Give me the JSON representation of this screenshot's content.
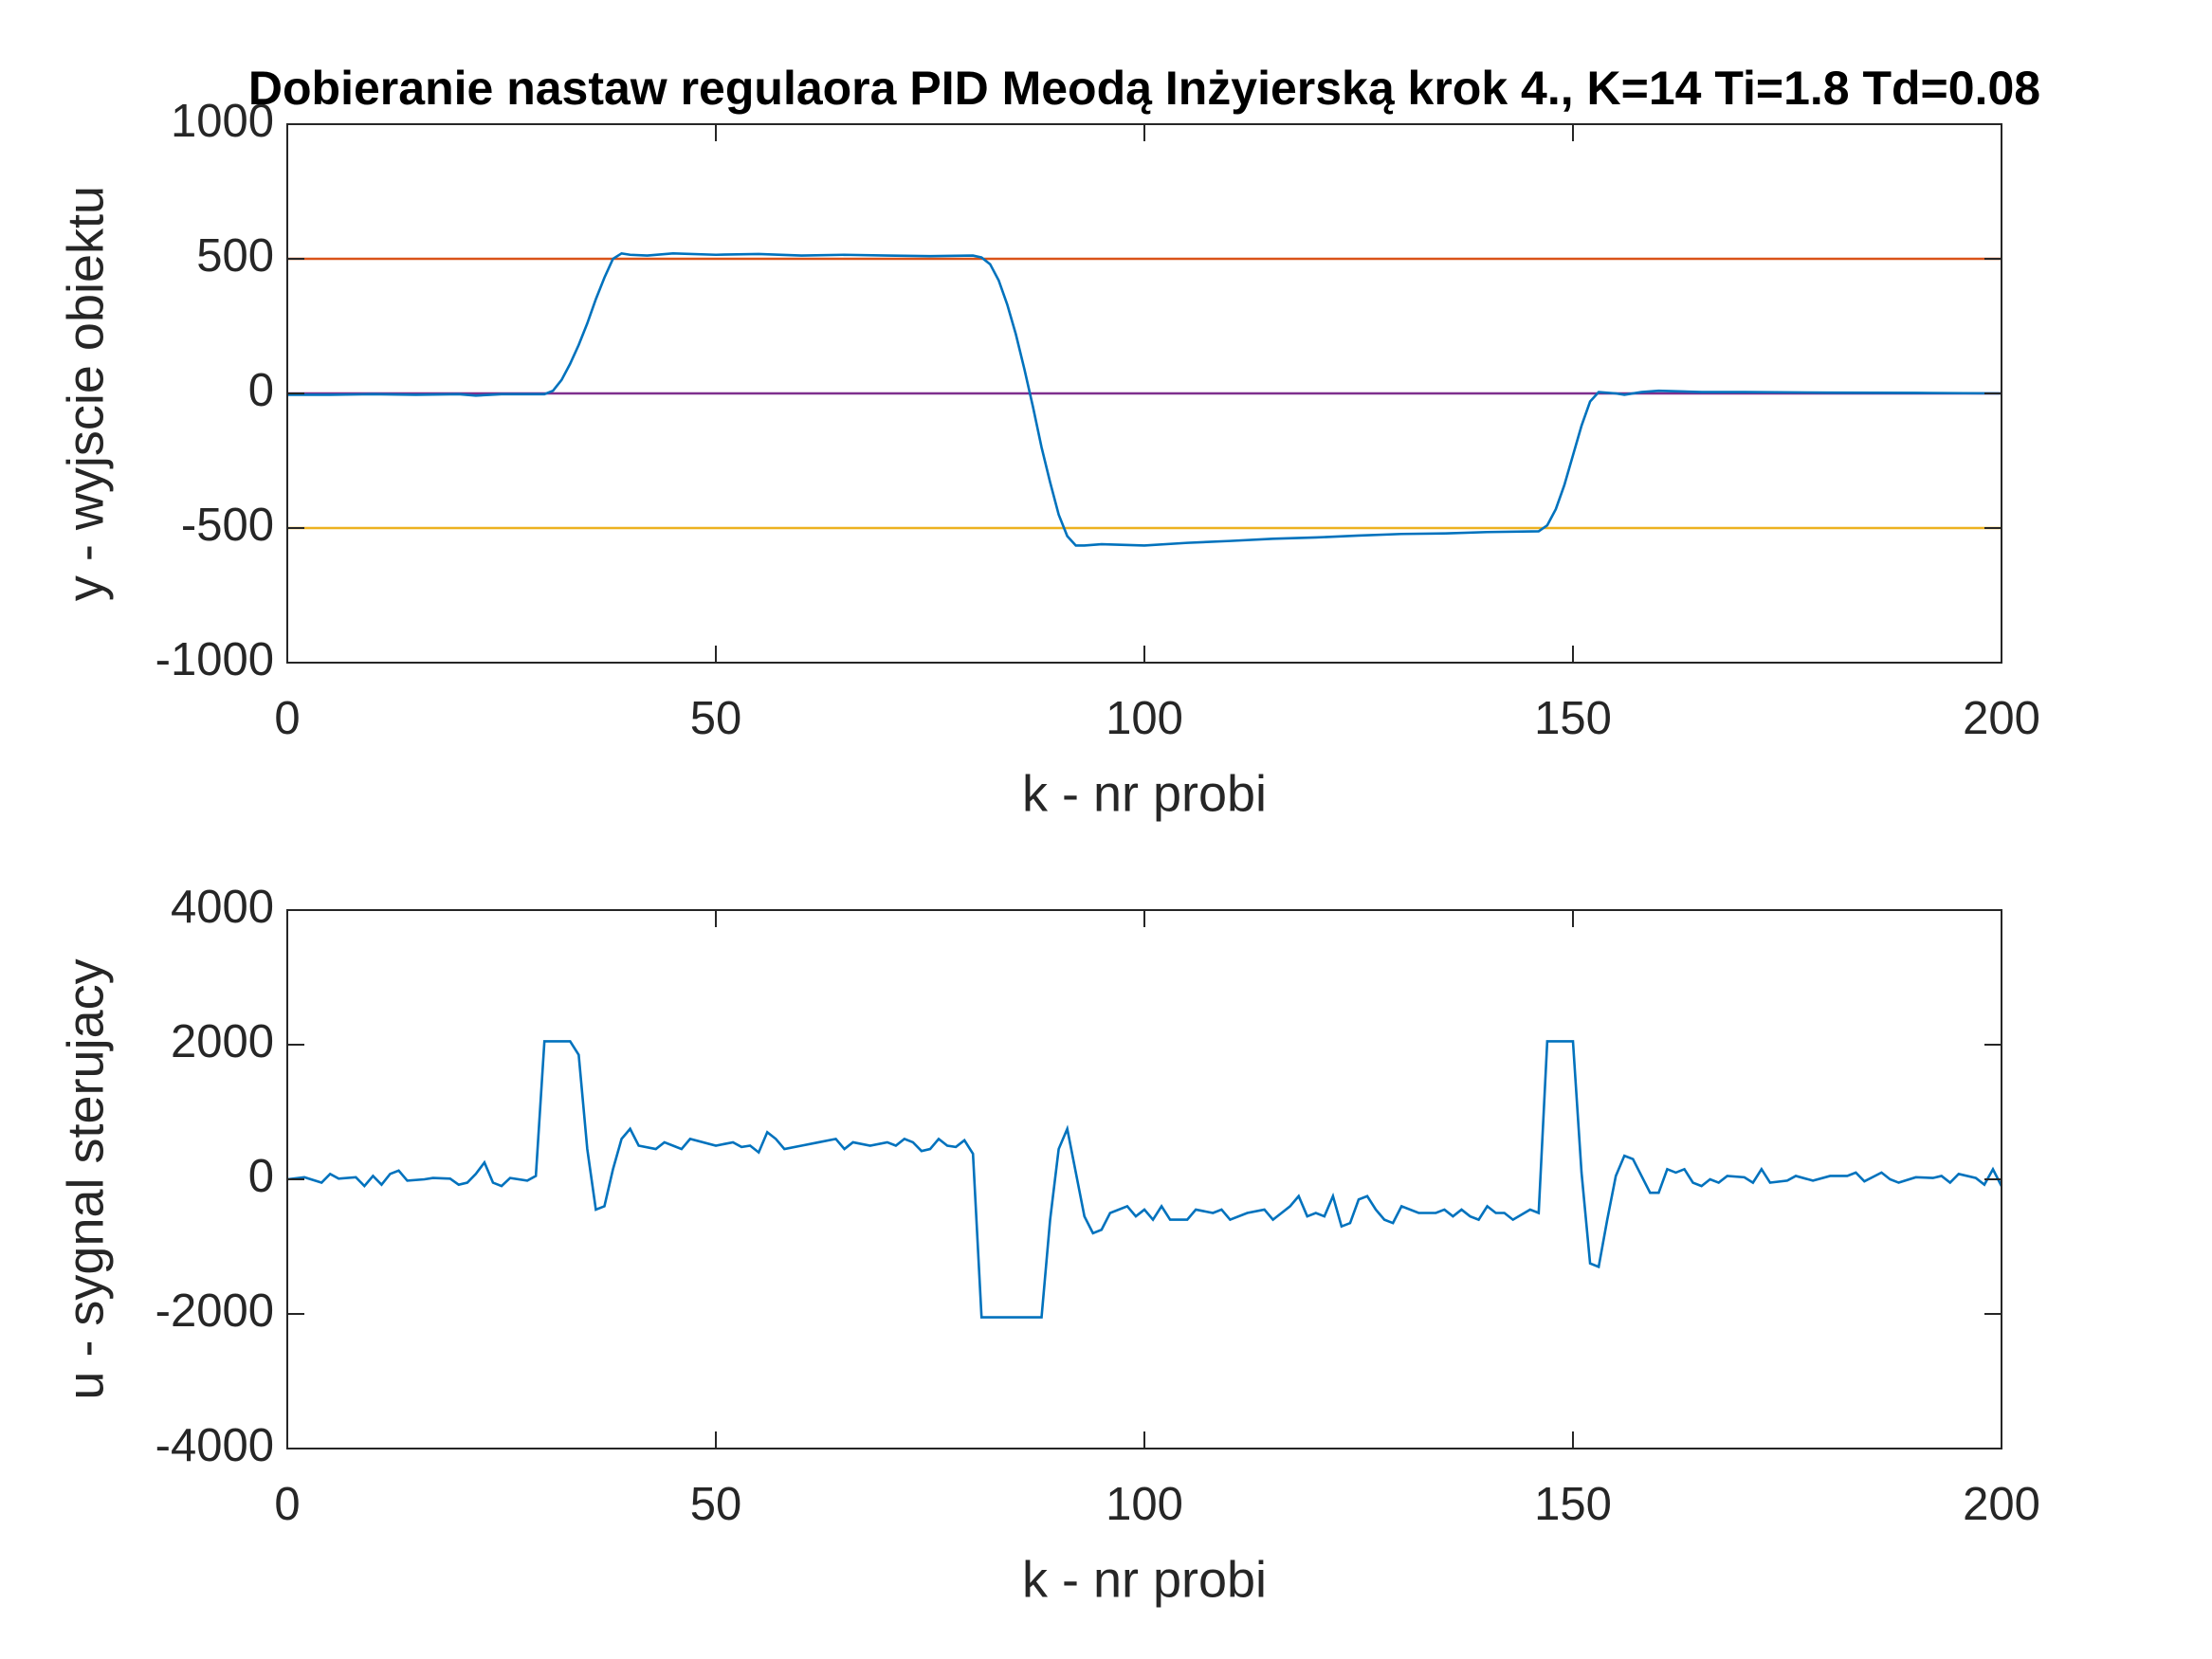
{
  "chart_data": [
    {
      "type": "line",
      "title": "Dobieranie nastaw regulaora PID Meodą Inżyierską krok 4., K=14 Ti=1.8 Td=0.08",
      "xlabel": "k - nr probi",
      "ylabel": "y - wyjscie obiektu",
      "xlim": [
        0,
        200
      ],
      "ylim": [
        -1000,
        1000
      ],
      "xticks": [
        0,
        50,
        100,
        150,
        200
      ],
      "yticks": [
        -1000,
        -500,
        0,
        500,
        1000
      ],
      "series": [
        {
          "color": "#D95319",
          "x": [
            0,
            200
          ],
          "values": [
            500,
            500
          ]
        },
        {
          "color": "#EDB120",
          "x": [
            0,
            200
          ],
          "values": [
            -500,
            -500
          ]
        },
        {
          "color": "#7E2F8E",
          "x": [
            0,
            200
          ],
          "values": [
            0,
            0
          ]
        },
        {
          "color": "#0072BD",
          "x": [
            0,
            5,
            10,
            15,
            20,
            22,
            25,
            30,
            31,
            32,
            33,
            34,
            35,
            36,
            37,
            38,
            39,
            40,
            42,
            45,
            50,
            55,
            60,
            65,
            70,
            75,
            80,
            81,
            82,
            83,
            84,
            85,
            86,
            87,
            88,
            89,
            90,
            91,
            92,
            93,
            95,
            100,
            105,
            110,
            115,
            120,
            125,
            130,
            135,
            140,
            146,
            147,
            148,
            149,
            150,
            151,
            152,
            153,
            155,
            156,
            158,
            160,
            165,
            170,
            180,
            190,
            200
          ],
          "values": [
            -5,
            -5,
            -3,
            -5,
            -3,
            -8,
            -3,
            -3,
            10,
            50,
            110,
            180,
            260,
            350,
            430,
            500,
            520,
            515,
            512,
            520,
            515,
            518,
            512,
            515,
            512,
            510,
            512,
            505,
            480,
            420,
            330,
            220,
            90,
            -50,
            -200,
            -330,
            -450,
            -530,
            -565,
            -565,
            -560,
            -565,
            -555,
            -548,
            -540,
            -535,
            -528,
            -522,
            -520,
            -515,
            -512,
            -490,
            -430,
            -340,
            -230,
            -120,
            -30,
            5,
            0,
            -5,
            5,
            10,
            5,
            5,
            3,
            2,
            0
          ]
        }
      ]
    },
    {
      "type": "line",
      "xlabel": "k - nr probi",
      "ylabel": "u - sygnal sterujacy",
      "xlim": [
        0,
        200
      ],
      "ylim": [
        -4000,
        4000
      ],
      "xticks": [
        0,
        50,
        100,
        150,
        200
      ],
      "yticks": [
        -4000,
        -2000,
        0,
        2000,
        4000
      ],
      "series": [
        {
          "color": "#0072BD",
          "x": [
            0,
            2,
            4,
            5,
            6,
            8,
            9,
            10,
            11,
            12,
            13,
            14,
            16,
            17,
            19,
            20,
            21,
            22,
            23,
            24,
            25,
            26,
            28,
            29,
            30,
            33,
            34,
            35,
            36,
            37,
            38,
            39,
            40,
            41,
            43,
            44,
            45,
            46,
            47,
            50,
            52,
            53,
            54,
            55,
            56,
            57,
            58,
            60,
            62,
            64,
            65,
            66,
            68,
            70,
            71,
            72,
            73,
            74,
            75,
            76,
            77,
            78,
            79,
            80,
            81,
            88,
            89,
            90,
            91,
            92,
            93,
            94,
            95,
            96,
            98,
            99,
            100,
            101,
            102,
            103,
            105,
            106,
            108,
            109,
            110,
            112,
            114,
            115,
            117,
            118,
            119,
            120,
            121,
            122,
            123,
            124,
            125,
            126,
            127,
            128,
            129,
            130,
            132,
            134,
            135,
            136,
            137,
            138,
            139,
            140,
            141,
            142,
            143,
            145,
            146,
            147,
            150,
            151,
            152,
            153,
            154,
            155,
            156,
            157,
            158,
            159,
            160,
            161,
            162,
            163,
            164,
            165,
            166,
            167,
            168,
            170,
            171,
            172,
            173,
            175,
            176,
            178,
            180,
            182,
            183,
            184,
            186,
            187,
            188,
            190,
            192,
            193,
            194,
            195,
            197,
            198,
            199,
            200
          ],
          "values": [
            0,
            30,
            -50,
            80,
            10,
            30,
            -100,
            50,
            -80,
            80,
            130,
            -20,
            0,
            20,
            10,
            -80,
            -50,
            80,
            250,
            -50,
            -100,
            20,
            -20,
            50,
            2050,
            2050,
            1850,
            450,
            -450,
            -400,
            150,
            600,
            750,
            500,
            450,
            550,
            500,
            450,
            600,
            500,
            550,
            480,
            500,
            400,
            700,
            600,
            450,
            500,
            550,
            600,
            450,
            550,
            500,
            550,
            500,
            600,
            550,
            420,
            450,
            600,
            500,
            480,
            580,
            380,
            -2050,
            -2050,
            -600,
            450,
            750,
            100,
            -550,
            -800,
            -750,
            -500,
            -400,
            -550,
            -450,
            -600,
            -400,
            -600,
            -600,
            -450,
            -500,
            -450,
            -600,
            -500,
            -450,
            -600,
            -400,
            -250,
            -550,
            -500,
            -550,
            -250,
            -700,
            -650,
            -300,
            -250,
            -450,
            -600,
            -650,
            -400,
            -500,
            -500,
            -450,
            -550,
            -450,
            -550,
            -600,
            -400,
            -500,
            -500,
            -600,
            -450,
            -500,
            2050,
            2050,
            100,
            -1250,
            -1300,
            -600,
            50,
            350,
            300,
            50,
            -200,
            -200,
            150,
            100,
            150,
            -50,
            -100,
            0,
            -50,
            50,
            30,
            -50,
            150,
            -50,
            -20,
            50,
            -20,
            50,
            50,
            100,
            -30,
            100,
            0,
            -50,
            30,
            20,
            50,
            -50,
            80,
            20,
            -80,
            150,
            -100
          ]
        }
      ]
    }
  ]
}
